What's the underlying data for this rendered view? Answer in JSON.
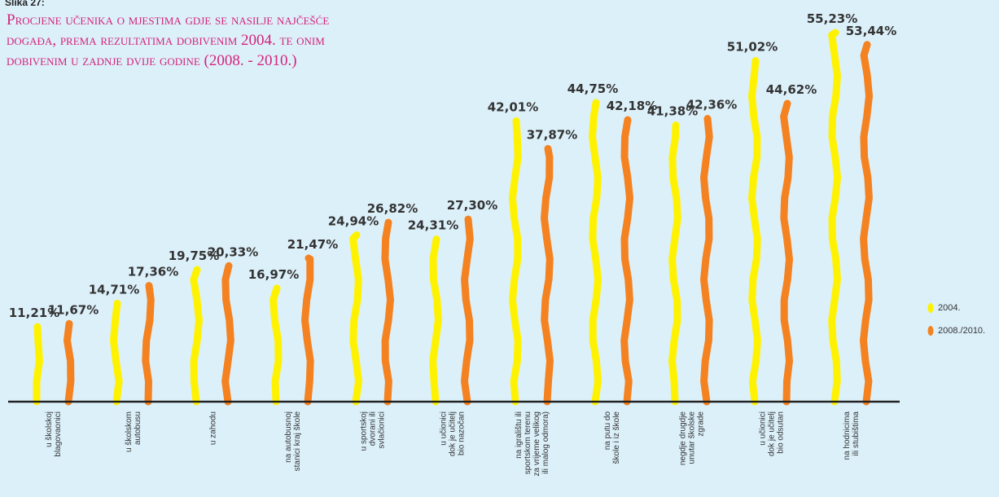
{
  "chart_data": {
    "type": "bar",
    "figure_label": "Slika 27:",
    "title": "Procjene učenika o mjestima gdje se nasilje najčešće događa, prema rezultatima dobivenim 2004. te onim dobivenim u zadnje dvije godine (2008. - 2010.)",
    "categories": [
      "u školskoj\nblagovaonici",
      "u školskom\nautobusu",
      "u zahodu",
      "na autobusnoj\nstanici kraj škole",
      "u sportskoj\ndvorani ili\nsvlačionici",
      "u učionici\ndok je učitelj\nbio nazočan",
      "na igralištu ili\nsportskom terenu\nza vrijeme velikog\nili malog odmora)",
      "na putu do\nškole i iz škole",
      "negdje drugdje\nunutar školske\nzgrade",
      "u učionici\ndok je učitelj\nbio odsutan",
      "na hodnicima\nili stubištima"
    ],
    "series": [
      {
        "name": "2004.",
        "color": "#fff200",
        "values": [
          11.21,
          14.71,
          19.75,
          16.97,
          24.94,
          24.31,
          42.01,
          44.75,
          41.38,
          51.02,
          55.23
        ],
        "value_labels": [
          "11,21%",
          "14,71%",
          "19,75%",
          "16,97%",
          "24,94%",
          "24,31%",
          "42,01%",
          "44,75%",
          "41,38%",
          "51,02%",
          "55,23%"
        ]
      },
      {
        "name": "2008./2010.",
        "color": "#f58220",
        "values": [
          11.67,
          17.36,
          20.33,
          21.47,
          26.82,
          27.3,
          37.87,
          42.18,
          42.36,
          44.62,
          53.44
        ],
        "value_labels": [
          "11,67%",
          "17,36%",
          "20,33%",
          "21,47%",
          "26,82%",
          "27,30%",
          "37,87%",
          "42,18%",
          "42,36%",
          "44,62%",
          "53,44%"
        ]
      }
    ]
  }
}
